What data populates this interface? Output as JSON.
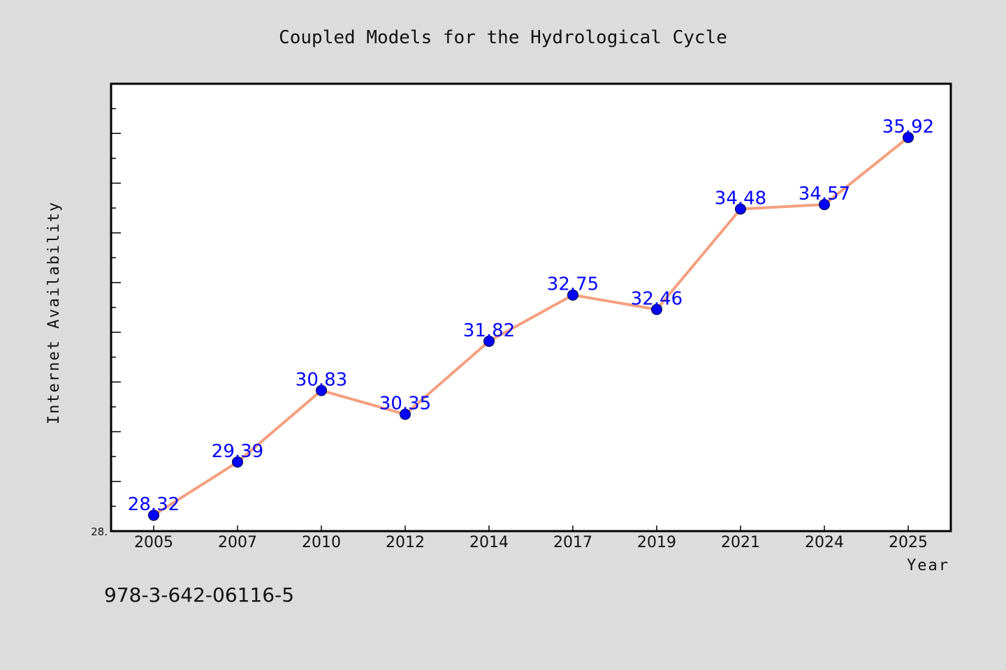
{
  "footer_text": "978-3-642-06116-5",
  "colors": {
    "background": "#dcdcdc",
    "plot_background": "#ffffff",
    "line": "#f4a07f",
    "marker": "#0000ff",
    "data_label": "#0000ff"
  },
  "chart_data": {
    "type": "line",
    "title": "Coupled Models for the Hydrological Cycle",
    "xlabel": "Year",
    "ylabel": "Internet Availability",
    "categories": [
      "2005",
      "2007",
      "2010",
      "2012",
      "2014",
      "2017",
      "2019",
      "2021",
      "2024",
      "2025"
    ],
    "series": [
      {
        "values": [
          28.32,
          29.39,
          30.83,
          30.35,
          31.82,
          32.75,
          32.46,
          34.48,
          34.57,
          35.92
        ],
        "data_labels": [
          "28.32",
          "29.39",
          "30.83",
          "30.35",
          "31.82",
          "32.75",
          "32.46",
          "34.48",
          "34.57",
          "35.92"
        ]
      }
    ],
    "y_tick_labels": [
      "28."
    ],
    "ylim": [
      28.0,
      37.0
    ],
    "grid": false,
    "legend": "none"
  }
}
